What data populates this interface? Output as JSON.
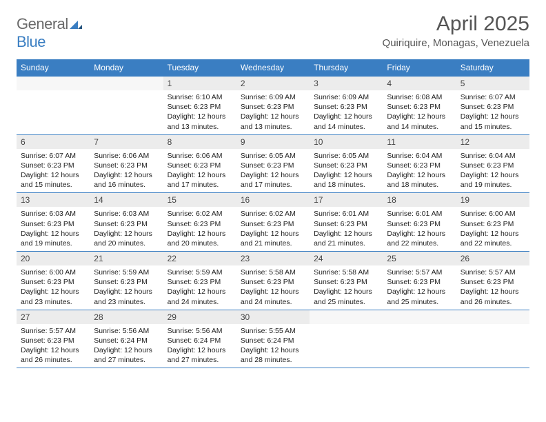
{
  "brand": {
    "name1": "General",
    "name2": "Blue"
  },
  "title": "April 2025",
  "location": "Quiriquire, Monagas, Venezuela",
  "colors": {
    "header_bg": "#3a7ec2",
    "header_fg": "#ffffff",
    "daynum_bg": "#ececec",
    "rule": "#3a7ec2"
  },
  "weekdays": [
    "Sunday",
    "Monday",
    "Tuesday",
    "Wednesday",
    "Thursday",
    "Friday",
    "Saturday"
  ],
  "weeks": [
    [
      null,
      null,
      {
        "d": "1",
        "sr": "6:10 AM",
        "ss": "6:23 PM",
        "dl": "12 hours and 13 minutes."
      },
      {
        "d": "2",
        "sr": "6:09 AM",
        "ss": "6:23 PM",
        "dl": "12 hours and 13 minutes."
      },
      {
        "d": "3",
        "sr": "6:09 AM",
        "ss": "6:23 PM",
        "dl": "12 hours and 14 minutes."
      },
      {
        "d": "4",
        "sr": "6:08 AM",
        "ss": "6:23 PM",
        "dl": "12 hours and 14 minutes."
      },
      {
        "d": "5",
        "sr": "6:07 AM",
        "ss": "6:23 PM",
        "dl": "12 hours and 15 minutes."
      }
    ],
    [
      {
        "d": "6",
        "sr": "6:07 AM",
        "ss": "6:23 PM",
        "dl": "12 hours and 15 minutes."
      },
      {
        "d": "7",
        "sr": "6:06 AM",
        "ss": "6:23 PM",
        "dl": "12 hours and 16 minutes."
      },
      {
        "d": "8",
        "sr": "6:06 AM",
        "ss": "6:23 PM",
        "dl": "12 hours and 17 minutes."
      },
      {
        "d": "9",
        "sr": "6:05 AM",
        "ss": "6:23 PM",
        "dl": "12 hours and 17 minutes."
      },
      {
        "d": "10",
        "sr": "6:05 AM",
        "ss": "6:23 PM",
        "dl": "12 hours and 18 minutes."
      },
      {
        "d": "11",
        "sr": "6:04 AM",
        "ss": "6:23 PM",
        "dl": "12 hours and 18 minutes."
      },
      {
        "d": "12",
        "sr": "6:04 AM",
        "ss": "6:23 PM",
        "dl": "12 hours and 19 minutes."
      }
    ],
    [
      {
        "d": "13",
        "sr": "6:03 AM",
        "ss": "6:23 PM",
        "dl": "12 hours and 19 minutes."
      },
      {
        "d": "14",
        "sr": "6:03 AM",
        "ss": "6:23 PM",
        "dl": "12 hours and 20 minutes."
      },
      {
        "d": "15",
        "sr": "6:02 AM",
        "ss": "6:23 PM",
        "dl": "12 hours and 20 minutes."
      },
      {
        "d": "16",
        "sr": "6:02 AM",
        "ss": "6:23 PM",
        "dl": "12 hours and 21 minutes."
      },
      {
        "d": "17",
        "sr": "6:01 AM",
        "ss": "6:23 PM",
        "dl": "12 hours and 21 minutes."
      },
      {
        "d": "18",
        "sr": "6:01 AM",
        "ss": "6:23 PM",
        "dl": "12 hours and 22 minutes."
      },
      {
        "d": "19",
        "sr": "6:00 AM",
        "ss": "6:23 PM",
        "dl": "12 hours and 22 minutes."
      }
    ],
    [
      {
        "d": "20",
        "sr": "6:00 AM",
        "ss": "6:23 PM",
        "dl": "12 hours and 23 minutes."
      },
      {
        "d": "21",
        "sr": "5:59 AM",
        "ss": "6:23 PM",
        "dl": "12 hours and 23 minutes."
      },
      {
        "d": "22",
        "sr": "5:59 AM",
        "ss": "6:23 PM",
        "dl": "12 hours and 24 minutes."
      },
      {
        "d": "23",
        "sr": "5:58 AM",
        "ss": "6:23 PM",
        "dl": "12 hours and 24 minutes."
      },
      {
        "d": "24",
        "sr": "5:58 AM",
        "ss": "6:23 PM",
        "dl": "12 hours and 25 minutes."
      },
      {
        "d": "25",
        "sr": "5:57 AM",
        "ss": "6:23 PM",
        "dl": "12 hours and 25 minutes."
      },
      {
        "d": "26",
        "sr": "5:57 AM",
        "ss": "6:23 PM",
        "dl": "12 hours and 26 minutes."
      }
    ],
    [
      {
        "d": "27",
        "sr": "5:57 AM",
        "ss": "6:23 PM",
        "dl": "12 hours and 26 minutes."
      },
      {
        "d": "28",
        "sr": "5:56 AM",
        "ss": "6:24 PM",
        "dl": "12 hours and 27 minutes."
      },
      {
        "d": "29",
        "sr": "5:56 AM",
        "ss": "6:24 PM",
        "dl": "12 hours and 27 minutes."
      },
      {
        "d": "30",
        "sr": "5:55 AM",
        "ss": "6:24 PM",
        "dl": "12 hours and 28 minutes."
      },
      null,
      null,
      null
    ]
  ],
  "labels": {
    "sunrise": "Sunrise:",
    "sunset": "Sunset:",
    "daylight": "Daylight:"
  }
}
